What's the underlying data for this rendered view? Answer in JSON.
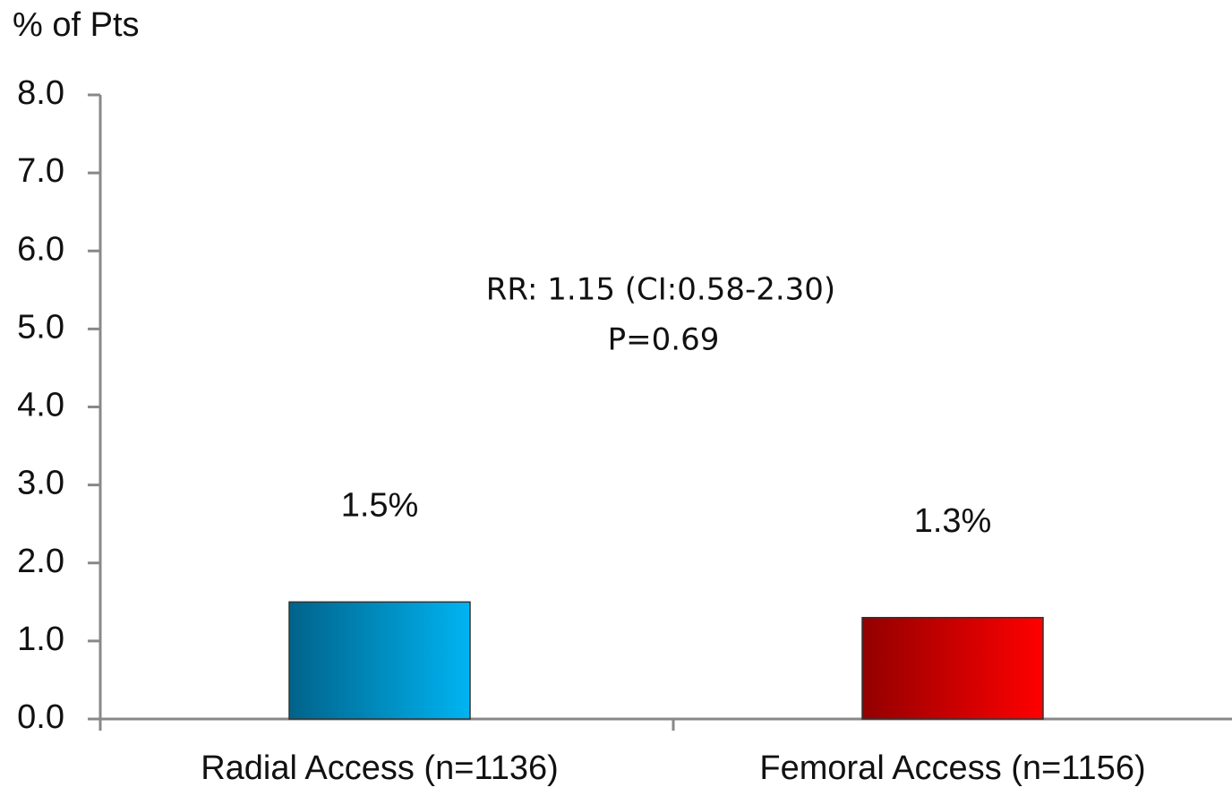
{
  "chart_data": {
    "type": "bar",
    "y_label": "% of Pts",
    "categories": [
      "Radial Access (n=1136)",
      "Femoral Access (n=1156)"
    ],
    "values": [
      1.5,
      1.3
    ],
    "value_labels": [
      "1.5%",
      "1.3%"
    ],
    "colors": [
      [
        "#00638a",
        "#00b4f2"
      ],
      [
        "#930000",
        "#ff0000"
      ]
    ],
    "ylim": [
      0,
      8
    ],
    "yticks": [
      {
        "value": 0,
        "label": "0.0"
      },
      {
        "value": 1,
        "label": "1.0"
      },
      {
        "value": 2,
        "label": "2.0"
      },
      {
        "value": 3,
        "label": "3.0"
      },
      {
        "value": 4,
        "label": "4.0"
      },
      {
        "value": 5,
        "label": "5.0"
      },
      {
        "value": 6,
        "label": "6.0"
      },
      {
        "value": 7,
        "label": "7.0"
      },
      {
        "value": 8,
        "label": "8.0"
      }
    ],
    "annotations": [
      "RR: 1.15 (CI:0.58-2.30)",
      "P=0.69"
    ],
    "grid": false
  }
}
